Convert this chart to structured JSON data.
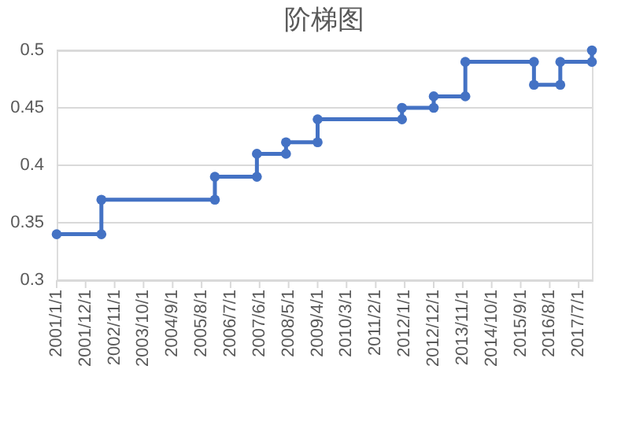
{
  "chart_data": {
    "type": "line",
    "title": "阶梯图",
    "x": [
      "2001-01-01",
      "2002-06-01",
      "2002-06-01",
      "2006-01-01",
      "2006-01-01",
      "2007-05-01",
      "2007-05-01",
      "2008-04-01",
      "2008-04-01",
      "2009-04-01",
      "2009-04-01",
      "2011-12-01",
      "2011-12-01",
      "2012-12-01",
      "2012-12-01",
      "2013-12-01",
      "2013-12-01",
      "2016-02-01",
      "2016-02-01",
      "2016-12-01",
      "2016-12-01",
      "2017-12-01",
      "2017-12-01"
    ],
    "series": [
      {
        "color": "#4472c4",
        "values": [
          0.34,
          0.34,
          0.37,
          0.37,
          0.39,
          0.39,
          0.41,
          0.41,
          0.42,
          0.42,
          0.44,
          0.44,
          0.45,
          0.45,
          0.46,
          0.46,
          0.49,
          0.49,
          0.47,
          0.47,
          0.49,
          0.49,
          0.5
        ]
      }
    ],
    "xlim": [
      "2001-01-01",
      "2017-12-01"
    ],
    "xticks": [
      {
        "value": "2001-01-01",
        "label": "2001/1/1"
      },
      {
        "value": "2001-12-01",
        "label": "2001/12/1"
      },
      {
        "value": "2002-11-01",
        "label": "2002/11/1"
      },
      {
        "value": "2003-10-01",
        "label": "2003/10/1"
      },
      {
        "value": "2004-09-01",
        "label": "2004/9/1"
      },
      {
        "value": "2005-08-01",
        "label": "2005/8/1"
      },
      {
        "value": "2006-07-01",
        "label": "2006/7/1"
      },
      {
        "value": "2007-06-01",
        "label": "2007/6/1"
      },
      {
        "value": "2008-05-01",
        "label": "2008/5/1"
      },
      {
        "value": "2009-04-01",
        "label": "2009/4/1"
      },
      {
        "value": "2010-03-01",
        "label": "2010/3/1"
      },
      {
        "value": "2011-02-01",
        "label": "2011/2/1"
      },
      {
        "value": "2012-01-01",
        "label": "2012/1/1"
      },
      {
        "value": "2012-12-01",
        "label": "2012/12/1"
      },
      {
        "value": "2013-11-01",
        "label": "2013/11/1"
      },
      {
        "value": "2014-10-01",
        "label": "2014/10/1"
      },
      {
        "value": "2015-09-01",
        "label": "2015/9/1"
      },
      {
        "value": "2016-08-01",
        "label": "2016/8/1"
      },
      {
        "value": "2017-07-01",
        "label": "2017/7/1"
      }
    ],
    "ylim": [
      0.3,
      0.5
    ],
    "yticks": [
      0.3,
      0.35,
      0.4,
      0.45,
      0.5
    ],
    "grid": "y",
    "legend": false,
    "marker": "circle",
    "line_style": "solid"
  }
}
